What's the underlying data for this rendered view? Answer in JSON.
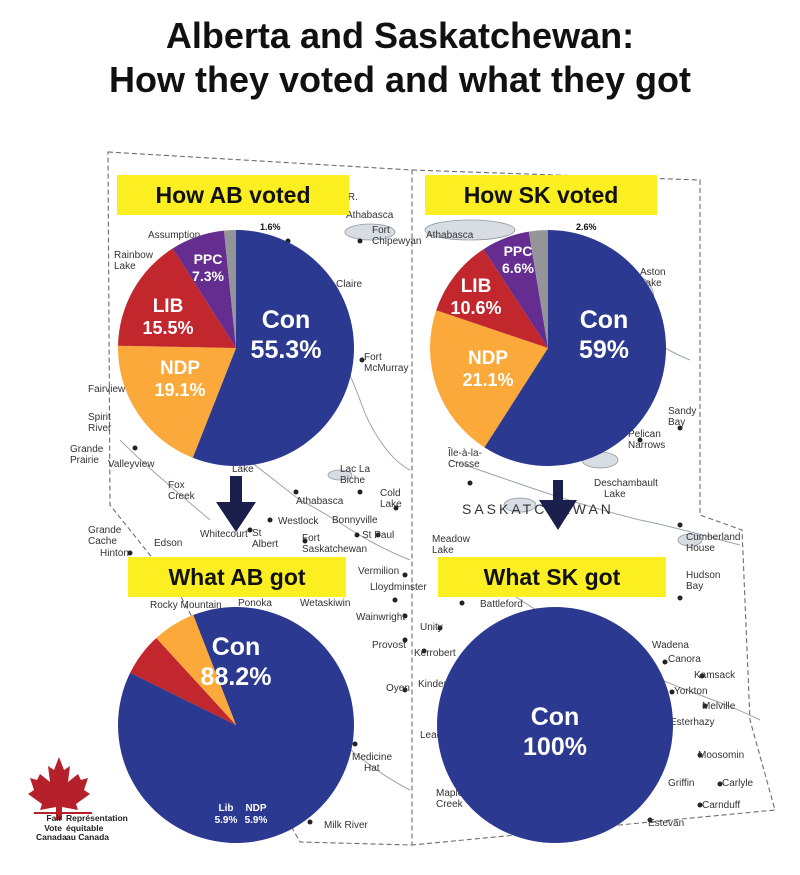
{
  "title_line1": "Alberta and Saskatchewan:",
  "title_line2": "How they voted and what they got",
  "colors": {
    "con": "#2b3990",
    "ndp": "#faa93a",
    "lib": "#c1272d",
    "ppc": "#662d91",
    "other": "#939598",
    "label_box": "#fbef21",
    "arrow": "#1b1f4b"
  },
  "chart_data": [
    {
      "type": "pie",
      "title": "How AB voted",
      "slices": [
        {
          "label": "Con",
          "value": 55.3,
          "display": "55.3%"
        },
        {
          "label": "NDP",
          "value": 19.1,
          "display": "19.1%"
        },
        {
          "label": "LIB",
          "value": 15.5,
          "display": "15.5%"
        },
        {
          "label": "PPC",
          "value": 7.3,
          "display": "7.3%"
        },
        {
          "label": "",
          "value": 1.6,
          "display": "1.6%"
        }
      ]
    },
    {
      "type": "pie",
      "title": "How SK voted",
      "slices": [
        {
          "label": "Con",
          "value": 59,
          "display": "59%"
        },
        {
          "label": "NDP",
          "value": 21.1,
          "display": "21.1%"
        },
        {
          "label": "LIB",
          "value": 10.6,
          "display": "10.6%"
        },
        {
          "label": "PPC",
          "value": 6.6,
          "display": "6.6%"
        },
        {
          "label": "",
          "value": 2.6,
          "display": "2.6%"
        }
      ]
    },
    {
      "type": "pie",
      "title": "What AB got",
      "slices": [
        {
          "label": "Con",
          "value": 88.2,
          "display": "88.2%"
        },
        {
          "label": "Lib",
          "value": 5.9,
          "display": "5.9%"
        },
        {
          "label": "NDP",
          "value": 5.9,
          "display": "5.9%"
        }
      ]
    },
    {
      "type": "pie",
      "title": "What SK got",
      "slices": [
        {
          "label": "Con",
          "value": 100,
          "display": "100%"
        }
      ]
    }
  ],
  "map_labels": [
    "Assumption",
    "Rainbow",
    "Lake",
    "Slave R.",
    "Fort",
    "Chipewyan",
    "Athabasca",
    "Claire",
    "Fort",
    "McMurray",
    "Grande",
    "Prairie",
    "Valleyview",
    "Fairview",
    "Spirit",
    "River",
    "Fox",
    "Creek",
    "Lake",
    "Lac La",
    "Biche",
    "Athabasca",
    "Cold",
    "Lake",
    "Westlock",
    "Bonnyville",
    "St Paul",
    "Grande",
    "Cache",
    "Whitecourt",
    "Edson",
    "Hinton",
    "St",
    "Albert",
    "Fort",
    "Saskatchewan",
    "Vermilion",
    "Lloydminster",
    "Rocky Mountain",
    "Ponoka",
    "Wetaskiwin",
    "Wainwright",
    "Provost",
    "Oyen",
    "Medicine",
    "Hat",
    "Milk River",
    "Athabasca",
    "Île-à-la-",
    "Crosse",
    "Pelican",
    "Narrows",
    "Sandy",
    "Bay",
    "Deschambault",
    "Lake",
    "SASKATCHEWAN",
    "Meadow",
    "Lake",
    "Cumberland",
    "House",
    "Hudson",
    "Bay",
    "Battleford",
    "Unity",
    "Kerrobert",
    "Kindersley",
    "Wadena",
    "Canora",
    "Kamsack",
    "Yorkton",
    "Melville",
    "Esterhazy",
    "Moosomin",
    "Carlyle",
    "Carnduff",
    "Estevan",
    "Griffin",
    "Leader",
    "Maple",
    "Creek",
    "Aston",
    "Lake"
  ],
  "logo": {
    "line1a": "Fair",
    "line2a": "Vote",
    "line3a": "Canada",
    "line1b": "Représentation",
    "line2b": "équitable",
    "line3b": "au Canada"
  }
}
